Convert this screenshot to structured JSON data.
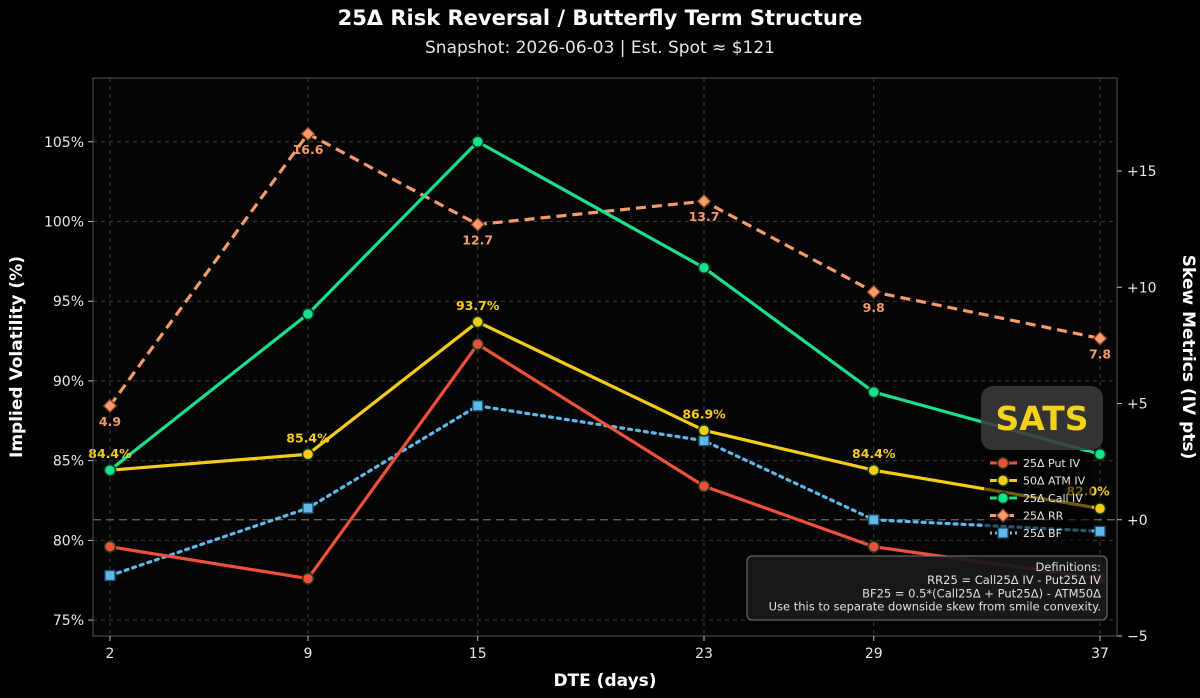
{
  "chart_data": {
    "type": "line",
    "title": "25Δ Risk Reversal / Butterfly Term Structure",
    "subtitle": "Snapshot: 2026-06-03  |  Est. Spot ≈ $121",
    "xlabel": "DTE (days)",
    "ylabel_left": "Implied Volatility (%)",
    "ylabel_right": "Skew Metrics (IV pts)",
    "x": [
      2,
      9,
      15,
      23,
      29,
      37
    ],
    "x_tick_labels": [
      "2",
      "9",
      "15",
      "23",
      "29",
      "37"
    ],
    "xlim": [
      1.4,
      37.6
    ],
    "ylim_left": [
      74,
      109
    ],
    "ylim_right": [
      -5,
      19
    ],
    "y_left_ticks": [
      75,
      80,
      85,
      90,
      95,
      100,
      105
    ],
    "y_left_tick_labels": [
      "75%",
      "80%",
      "85%",
      "90%",
      "95%",
      "100%",
      "105%"
    ],
    "y_right_ticks": [
      -5,
      0,
      5,
      10,
      15
    ],
    "y_right_tick_labels": [
      "−5",
      "+0",
      "+5",
      "+10",
      "+15"
    ],
    "grid": true,
    "zero_line_right": 0,
    "series": [
      {
        "name": "25Δ Put IV",
        "axis": "left",
        "color": "#f0503a",
        "style": "solid",
        "marker": "circle",
        "values": [
          79.6,
          77.6,
          92.3,
          83.4,
          79.6,
          77.6
        ],
        "labels": [
          "",
          "",
          "",
          "",
          "",
          ""
        ]
      },
      {
        "name": "50Δ ATM IV",
        "axis": "left",
        "color": "#f5cc16",
        "style": "solid",
        "marker": "circle",
        "values": [
          84.4,
          85.4,
          93.7,
          86.9,
          84.4,
          82.0
        ],
        "labels": [
          "84.4%",
          "85.4%",
          "93.7%",
          "86.9%",
          "84.4%",
          "82.0%"
        ]
      },
      {
        "name": "25Δ Call IV",
        "axis": "left",
        "color": "#19e08c",
        "style": "solid",
        "marker": "circle",
        "values": [
          84.4,
          94.2,
          105.0,
          97.1,
          89.3,
          85.4
        ],
        "labels": [
          "",
          "",
          "",
          "",
          "",
          ""
        ]
      },
      {
        "name": "25Δ RR",
        "axis": "right",
        "color": "#f59a6b",
        "style": "dashed",
        "marker": "diamond",
        "values": [
          4.9,
          16.6,
          12.7,
          13.7,
          9.8,
          7.8
        ],
        "labels": [
          "4.9",
          "16.6",
          "12.7",
          "13.7",
          "9.8",
          "7.8"
        ]
      },
      {
        "name": "25Δ BF",
        "axis": "right",
        "color": "#5fb8e8",
        "style": "dotted",
        "marker": "square",
        "values": [
          -2.4,
          0.5,
          4.9,
          3.4,
          0.0,
          -0.5
        ],
        "labels": [
          "",
          "",
          "",
          "",
          "",
          ""
        ]
      }
    ],
    "legend_position": "right",
    "annotations": [
      "Definitions:",
      "RR25 = Call25Δ IV - Put25Δ IV",
      "BF25 = 0.5*(Call25Δ + Put25Δ) - ATM50Δ",
      "Use this to separate downside skew from smile convexity."
    ]
  },
  "logo": {
    "text": "SATS"
  },
  "colors": {
    "background": "#000000",
    "plot_bg": "#050505",
    "grid": "#3a3a3a",
    "spine": "#555555"
  }
}
